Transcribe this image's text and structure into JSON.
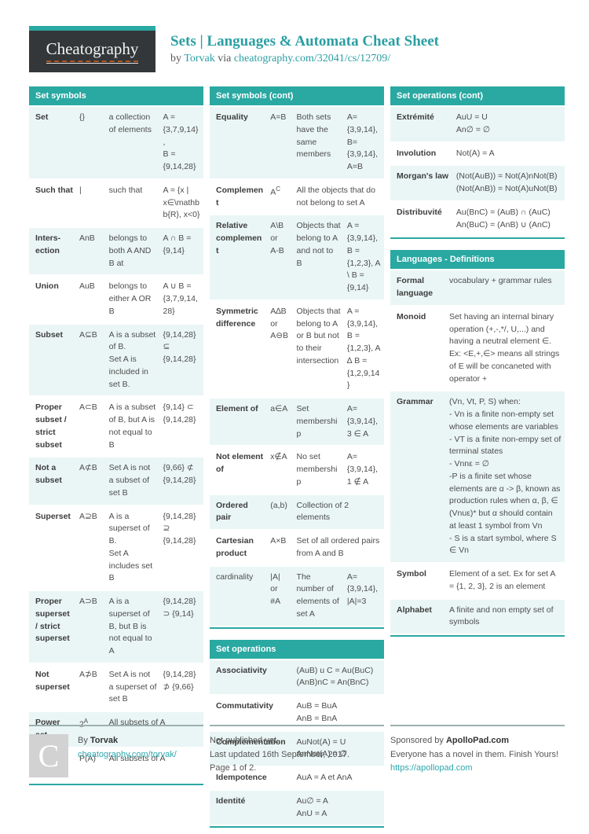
{
  "header": {
    "logo_text": "Cheatography",
    "title": "Sets | Languages & Automata Cheat Sheet",
    "byline_prefix": "by",
    "author": "Torvak",
    "via_label": "via",
    "source_link": "cheatography.com/32041/cs/12709/"
  },
  "colors": {
    "teal_accent": "#2aa8a2",
    "row_tint": "#eaf6f5",
    "logo_background": "#33373a",
    "logo_underline_orange": "#b5541e"
  },
  "tables": {
    "set_symbols": {
      "title": "Set symbols",
      "layout_cols": "27,17,31,25",
      "rows": [
        {
          "cells": [
            "Set",
            "{}",
            "a collection of elements",
            "A =\n{3,7,9,14},\nB =\n{9,14,28}"
          ]
        },
        {
          "cells": [
            "Such that",
            "|",
            "such that",
            "A = {x | x∈\\mathbb{R}, x<0}"
          ]
        },
        {
          "cells": [
            "Inters­ection",
            "AnB",
            "belongs to both A AND B at",
            "A ∩ B = {9,14}"
          ]
        },
        {
          "cells": [
            "Union",
            "AuB",
            "belongs to either A OR B",
            "A ∪ B = {3,7,9,14,28}"
          ]
        },
        {
          "cells": [
            "Subset",
            "A⊆B",
            "A is a subset of B.\nSet A is included in set B.",
            "{9,14,28} ⊆\n{9,14,28}"
          ]
        },
        {
          "cells": [
            "Proper subset / strict subset",
            "A⊂B",
            "A is a subset of B, but A is not equal to B",
            "{9,14} ⊂\n{9,14,28}"
          ]
        },
        {
          "cells": [
            "Not a subset",
            "A⊄B",
            "Set A is not a subset of set B",
            "{9,66} ⊄\n{9,14,28}"
          ]
        },
        {
          "cells": [
            "Superset",
            "A⊇B",
            "A is a superset of B.\nSet A includes set B",
            "{9,14,28}\n⊇\n{9,14,28}"
          ]
        },
        {
          "cells": [
            "Proper superset / strict superset",
            "A⊃B",
            "A is a superset of B, but B is not equal to A",
            "{9,14,28}\n⊃ {9,14}"
          ]
        },
        {
          "cells": [
            "Not superset",
            "A⊅B",
            "Set A is not a superset of set B",
            "{9,14,28}\n⊅ {9,66}"
          ]
        },
        {
          "cells": [
            "Power set",
            "2^A",
            "All subsets of A"
          ]
        },
        {
          "cells": [
            "Power set",
            "P(A)",
            "All subsets of A"
          ]
        }
      ]
    },
    "set_symbols_cont": {
      "title": "Set symbols (cont)",
      "layout_cols": "33,15,29,23",
      "rows": [
        {
          "cells": [
            "Equality",
            "A=B",
            "Both sets have the same members",
            "A=\n{3,9,14},\nB=\n{3,9,14},\nA=B"
          ]
        },
        {
          "cells": [
            "Complement",
            "A^C",
            "All the objects that do not belong to set A"
          ]
        },
        {
          "cells": [
            "Relative complement",
            "A\\B\nor\nA-B",
            "Objects that belong to A and not to B",
            "A =\n{3,9,14},\nB =\n{1,2,3}, A\n\\ B =\n{9,14}"
          ]
        },
        {
          "cells": [
            "Symmetric difference",
            "A∆B\nor\nA⊖B",
            "Objects that belong to A or B but not to their intersection",
            "A =\n{3,9,14},\nB =\n{1,2,3}, A\n∆ B =\n{1,2,9,14}"
          ]
        },
        {
          "cells": [
            "Element of",
            "a∈A",
            "Set membership",
            "A=\n{3,9,14},\n3 ∈ A"
          ]
        },
        {
          "cells": [
            "Not element of",
            "x∉A",
            "No set membership",
            "A=\n{3,9,14},\n1 ∉ A"
          ]
        },
        {
          "cells": [
            "Ordered pair",
            "(a,b)",
            "Collection of 2 elements"
          ]
        },
        {
          "cells": [
            "Cartesian product",
            "A×B",
            "Set of all ordered pairs from A and B"
          ]
        },
        {
          "plain": true,
          "cells": [
            "cardinality",
            "|A|\nor\n#A",
            "The number of elements of set A",
            "A=\n{3,9,14},\n|A|=3"
          ]
        }
      ]
    },
    "set_operations": {
      "title": "Set operations",
      "layout_cols": "48,52",
      "rows": [
        {
          "cells": [
            "Associativity",
            "(AuB) u C = Au(BuC)\n(AnB)nC = An(BnC)"
          ]
        },
        {
          "cells": [
            "Commutativity",
            "AuB = BuA\nAnB = BnA"
          ]
        },
        {
          "cells": [
            "Complementation",
            "AuNot(A) = U\nAnNot(A) = ∅"
          ]
        },
        {
          "cells": [
            "Idempotence",
            "AuA = A et AnA"
          ]
        },
        {
          "cells": [
            "Identité",
            "Au∅ = A\nAnU = A"
          ]
        }
      ]
    },
    "set_operations_cont": {
      "title": "Set operations (cont)",
      "layout_cols": "36,64",
      "rows": [
        {
          "cells": [
            "Extrémité",
            "AuU = U\nAn∅ = ∅"
          ]
        },
        {
          "cells": [
            "Involution",
            "Not(A) = A"
          ]
        },
        {
          "cells": [
            "Morgan's law",
            "(Not(AuB)) = Not(A)nNot(B)\n(Not(AnB)) = Not(A)uNot(B)"
          ]
        },
        {
          "cells": [
            "Distribuvité",
            "Au(BnC) = (AuB) ∩ (AuC)\nAn(BuC) = (AnB) ∪ (AnC)"
          ]
        }
      ]
    },
    "languages_definitions": {
      "title": "Languages - Definitions",
      "layout_cols": "32,68",
      "rows": [
        {
          "cells": [
            "Formal language",
            "vocabulary + grammar rules"
          ]
        },
        {
          "cells": [
            "Monoid",
            "Set having an internal binary operation (+,-,*/, U,...) and having a neutral element ∈. Ex: <E,+,∈> means all strings of E will be concaneted with operator +"
          ]
        },
        {
          "cells": [
            "Grammar",
            "(Vn, Vt, P, S) when:\n- Vn is a finite non-empty set whose elements are variables\n- VT is a finite non-empy set of terminal states\n- Vnnε = ∅\n-P is a finite set whose elements are α -> β, known as production rules when α, β, ∈ (Vnuε)* but α should contain at least 1 symbol from Vn\n- S is a start symbol, where S ∈ Vn"
          ]
        },
        {
          "cells": [
            "Symbol",
            "Element of a set. Ex for set A = {1, 2, 3}, 2 is an element"
          ]
        },
        {
          "cells": [
            "Alphabet",
            "A finite and non empty set of symbols"
          ]
        }
      ]
    }
  },
  "footer": {
    "logo_letter": "C",
    "by_label": "By",
    "author": "Torvak",
    "author_link": "cheatography.com/torvak/",
    "status": "Not published yet.",
    "updated": "Last updated 16th September, 2017.",
    "page_info": "Page 1 of 2.",
    "sponsor_prefix": "Sponsored by",
    "sponsor_name": "ApolloPad.com",
    "sponsor_tagline": "Everyone has a novel in them. Finish Yours!",
    "sponsor_link": "https://apollopad.com"
  }
}
